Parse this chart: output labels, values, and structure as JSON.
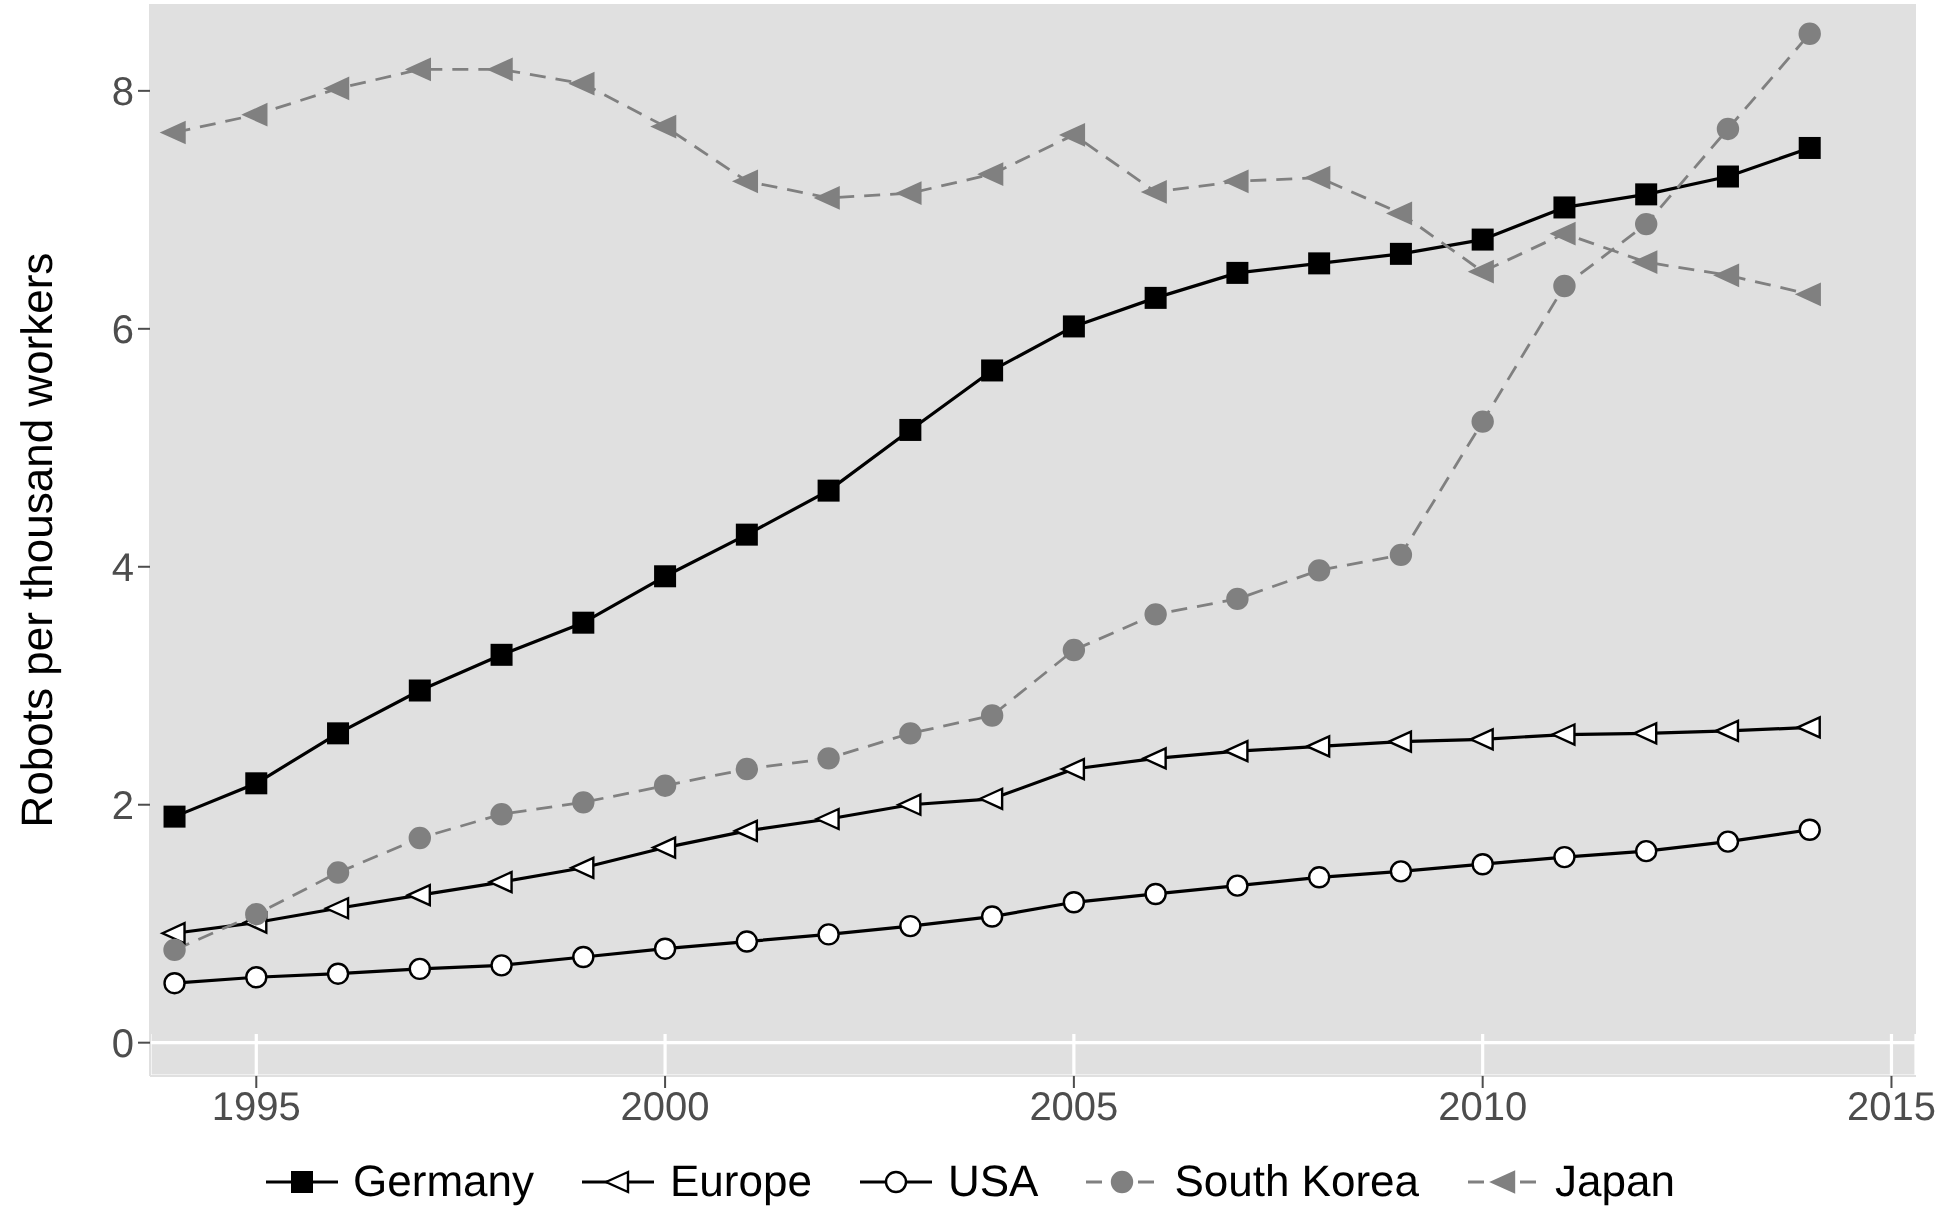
{
  "chart_data": {
    "type": "line",
    "ylabel": "Robots per thousand workers",
    "x": [
      1994,
      1995,
      1996,
      1997,
      1998,
      1999,
      2000,
      2001,
      2002,
      2003,
      2004,
      2005,
      2006,
      2007,
      2008,
      2009,
      2010,
      2011,
      2012,
      2013,
      2014
    ],
    "series": [
      {
        "name": "Germany",
        "color": "#000000",
        "marker": "square",
        "line_style": "solid",
        "values": [
          1.9,
          2.18,
          2.6,
          2.96,
          3.26,
          3.53,
          3.92,
          4.27,
          4.64,
          5.15,
          5.65,
          6.02,
          6.26,
          6.47,
          6.55,
          6.63,
          6.75,
          7.02,
          7.13,
          7.28,
          7.52
        ]
      },
      {
        "name": "Europe",
        "color": "#000000",
        "marker": "triangle",
        "line_style": "solid",
        "values": [
          0.92,
          1.01,
          1.13,
          1.24,
          1.35,
          1.47,
          1.64,
          1.78,
          1.88,
          2.0,
          2.05,
          2.3,
          2.39,
          2.45,
          2.49,
          2.53,
          2.55,
          2.59,
          2.6,
          2.62,
          2.65
        ]
      },
      {
        "name": "USA",
        "color": "#000000",
        "marker": "circle",
        "line_style": "solid",
        "values": [
          0.5,
          0.55,
          0.58,
          0.62,
          0.65,
          0.72,
          0.79,
          0.85,
          0.91,
          0.98,
          1.06,
          1.18,
          1.25,
          1.32,
          1.39,
          1.44,
          1.5,
          1.56,
          1.61,
          1.69,
          1.79
        ]
      },
      {
        "name": "South Korea",
        "color": "#808080",
        "marker": "circle",
        "line_style": "dashed",
        "values": [
          0.78,
          1.08,
          1.43,
          1.72,
          1.92,
          2.02,
          2.16,
          2.3,
          2.39,
          2.6,
          2.75,
          3.3,
          3.6,
          3.73,
          3.97,
          4.1,
          5.22,
          6.36,
          6.88,
          7.68,
          8.48
        ]
      },
      {
        "name": "Japan",
        "color": "#808080",
        "marker": "triangle",
        "line_style": "dashed",
        "values": [
          7.65,
          7.8,
          8.02,
          8.18,
          8.18,
          8.06,
          7.7,
          7.24,
          7.1,
          7.14,
          7.3,
          7.63,
          7.15,
          7.24,
          7.27,
          6.97,
          6.48,
          6.8,
          6.56,
          6.45,
          6.29
        ]
      }
    ],
    "xlim": [
      1993.7,
      2015.3
    ],
    "xticks": [
      1995,
      2000,
      2005,
      2010,
      2015
    ],
    "ylim": [
      -0.28,
      8.73
    ],
    "yticks": [
      0,
      2,
      4,
      6,
      8
    ],
    "grid": true,
    "legend": "bottom"
  }
}
